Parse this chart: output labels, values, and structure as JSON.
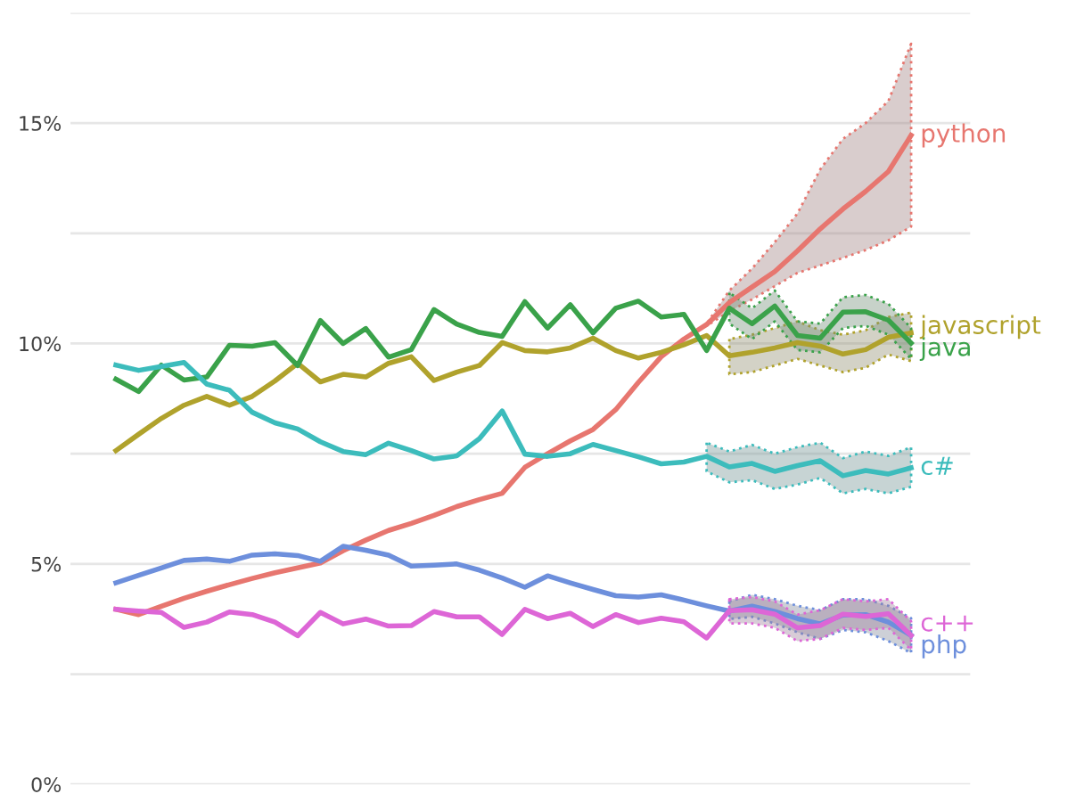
{
  "chart_data": {
    "type": "line",
    "legend": false,
    "grid": "y",
    "tick_labels": "y",
    "categories": [
      null,
      null,
      null,
      null,
      null,
      null,
      null,
      null,
      null,
      null,
      null,
      null,
      null,
      null,
      null,
      null,
      null,
      null,
      null,
      null,
      null,
      null,
      null,
      null,
      null,
      null,
      null,
      null,
      null,
      null,
      null,
      null,
      null,
      null,
      null,
      null
    ],
    "ylim": [
      0,
      17.5
    ],
    "yticks": [
      {
        "value": 0,
        "label": "0%"
      },
      {
        "value": 2.5,
        "label": null
      },
      {
        "value": 5,
        "label": "5%"
      },
      {
        "value": 7.5,
        "label": null
      },
      {
        "value": 10,
        "label": "10%"
      },
      {
        "value": 12.5,
        "label": null
      },
      {
        "value": 15,
        "label": "15%"
      },
      {
        "value": 17.5,
        "label": null
      }
    ],
    "series": [
      {
        "name": "python",
        "color": "#e7766f",
        "values": [
          3.97,
          3.85,
          4.04,
          4.22,
          4.38,
          4.53,
          4.67,
          4.8,
          4.91,
          5.02,
          5.3,
          5.54,
          5.76,
          5.92,
          6.1,
          6.3,
          6.46,
          6.6,
          7.19,
          7.5,
          7.79,
          8.05,
          8.5,
          9.12,
          9.7,
          10.1,
          10.43,
          10.93,
          11.28,
          11.63,
          12.1,
          12.6,
          13.05,
          13.45,
          13.9,
          14.72
        ],
        "lower": [
          null,
          null,
          null,
          null,
          null,
          null,
          null,
          null,
          null,
          null,
          null,
          null,
          null,
          null,
          null,
          null,
          null,
          null,
          null,
          null,
          null,
          null,
          null,
          null,
          null,
          null,
          10.4,
          10.73,
          11.0,
          11.3,
          11.6,
          11.77,
          11.94,
          12.12,
          12.34,
          12.65
        ],
        "upper": [
          null,
          null,
          null,
          null,
          null,
          null,
          null,
          null,
          null,
          null,
          null,
          null,
          null,
          null,
          null,
          null,
          null,
          null,
          null,
          null,
          null,
          null,
          null,
          null,
          null,
          null,
          10.45,
          11.2,
          11.7,
          12.3,
          12.95,
          13.95,
          14.64,
          15.0,
          15.5,
          16.8
        ]
      },
      {
        "name": "javascript",
        "color": "#b0a22c",
        "values": [
          7.57,
          7.94,
          8.3,
          8.6,
          8.8,
          8.6,
          8.8,
          9.15,
          9.55,
          9.13,
          9.3,
          9.24,
          9.55,
          9.7,
          9.16,
          9.35,
          9.5,
          10.02,
          9.84,
          9.81,
          9.9,
          10.12,
          9.84,
          9.67,
          9.8,
          9.97,
          10.18,
          9.72,
          9.8,
          9.9,
          10.02,
          9.94,
          9.76,
          9.86,
          10.14,
          10.24
        ],
        "lower": [
          null,
          null,
          null,
          null,
          null,
          null,
          null,
          null,
          null,
          null,
          null,
          null,
          null,
          null,
          null,
          null,
          null,
          null,
          null,
          null,
          null,
          null,
          null,
          null,
          null,
          null,
          null,
          9.3,
          9.35,
          9.5,
          9.65,
          9.5,
          9.35,
          9.45,
          9.75,
          9.6
        ],
        "upper": [
          null,
          null,
          null,
          null,
          null,
          null,
          null,
          null,
          null,
          null,
          null,
          null,
          null,
          null,
          null,
          null,
          null,
          null,
          null,
          null,
          null,
          null,
          null,
          null,
          null,
          null,
          null,
          10.1,
          10.2,
          10.35,
          10.5,
          10.3,
          10.2,
          10.3,
          10.6,
          10.7
        ]
      },
      {
        "name": "java",
        "color": "#3aa24a",
        "values": [
          9.19,
          8.91,
          9.51,
          9.17,
          9.24,
          9.96,
          9.94,
          10.02,
          9.5,
          10.52,
          10.0,
          10.34,
          9.69,
          9.86,
          10.77,
          10.44,
          10.25,
          10.16,
          10.95,
          10.35,
          10.88,
          10.24,
          10.8,
          10.96,
          10.6,
          10.66,
          9.84,
          10.8,
          10.45,
          10.85,
          10.18,
          10.12,
          10.71,
          10.72,
          10.53,
          10.01
        ],
        "lower": [
          null,
          null,
          null,
          null,
          null,
          null,
          null,
          null,
          null,
          null,
          null,
          null,
          null,
          null,
          null,
          null,
          null,
          null,
          null,
          null,
          null,
          null,
          null,
          null,
          null,
          null,
          null,
          10.45,
          10.1,
          10.5,
          9.85,
          9.8,
          10.35,
          10.4,
          10.2,
          9.65
        ],
        "upper": [
          null,
          null,
          null,
          null,
          null,
          null,
          null,
          null,
          null,
          null,
          null,
          null,
          null,
          null,
          null,
          null,
          null,
          null,
          null,
          null,
          null,
          null,
          null,
          null,
          null,
          null,
          null,
          11.15,
          10.8,
          11.2,
          10.5,
          10.45,
          11.05,
          11.1,
          10.9,
          10.35
        ]
      },
      {
        "name": "c#",
        "color": "#3cbcbc",
        "values": [
          9.51,
          9.39,
          9.48,
          9.57,
          9.08,
          8.94,
          8.44,
          8.2,
          8.06,
          7.77,
          7.55,
          7.48,
          7.74,
          7.57,
          7.38,
          7.45,
          7.84,
          8.47,
          7.49,
          7.44,
          7.5,
          7.71,
          7.57,
          7.43,
          7.27,
          7.31,
          7.44,
          7.2,
          7.28,
          7.1,
          7.23,
          7.34,
          7.0,
          7.12,
          7.04,
          7.18
        ],
        "lower": [
          null,
          null,
          null,
          null,
          null,
          null,
          null,
          null,
          null,
          null,
          null,
          null,
          null,
          null,
          null,
          null,
          null,
          null,
          null,
          null,
          null,
          null,
          null,
          null,
          null,
          null,
          7.1,
          6.85,
          6.9,
          6.7,
          6.8,
          6.95,
          6.6,
          6.7,
          6.6,
          6.75
        ],
        "upper": [
          null,
          null,
          null,
          null,
          null,
          null,
          null,
          null,
          null,
          null,
          null,
          null,
          null,
          null,
          null,
          null,
          null,
          null,
          null,
          null,
          null,
          null,
          null,
          null,
          null,
          null,
          7.75,
          7.55,
          7.7,
          7.5,
          7.65,
          7.75,
          7.4,
          7.55,
          7.45,
          7.65
        ]
      },
      {
        "name": "php",
        "color": "#6d8fdc",
        "values": [
          4.57,
          4.74,
          4.91,
          5.08,
          5.11,
          5.06,
          5.2,
          5.23,
          5.19,
          5.06,
          5.4,
          5.31,
          5.2,
          4.95,
          4.97,
          5.0,
          4.86,
          4.68,
          4.47,
          4.73,
          4.57,
          4.42,
          4.28,
          4.25,
          4.3,
          4.18,
          4.05,
          3.93,
          4.04,
          3.92,
          3.76,
          3.64,
          3.84,
          3.85,
          3.68,
          3.38
        ],
        "lower": [
          null,
          null,
          null,
          null,
          null,
          null,
          null,
          null,
          null,
          null,
          null,
          null,
          null,
          null,
          null,
          null,
          null,
          null,
          null,
          null,
          null,
          null,
          null,
          null,
          null,
          null,
          null,
          3.75,
          3.8,
          3.65,
          3.45,
          3.3,
          3.5,
          3.45,
          3.25,
          2.98
        ],
        "upper": [
          null,
          null,
          null,
          null,
          null,
          null,
          null,
          null,
          null,
          null,
          null,
          null,
          null,
          null,
          null,
          null,
          null,
          null,
          null,
          null,
          null,
          null,
          null,
          null,
          null,
          null,
          null,
          4.15,
          4.3,
          4.2,
          4.05,
          3.95,
          4.2,
          4.2,
          4.05,
          3.77
        ]
      },
      {
        "name": "c++",
        "color": "#dd66d6",
        "values": [
          3.97,
          3.93,
          3.9,
          3.56,
          3.68,
          3.91,
          3.85,
          3.68,
          3.37,
          3.9,
          3.64,
          3.75,
          3.59,
          3.6,
          3.92,
          3.8,
          3.8,
          3.4,
          3.97,
          3.76,
          3.88,
          3.58,
          3.85,
          3.67,
          3.77,
          3.69,
          3.32,
          3.94,
          3.96,
          3.86,
          3.55,
          3.6,
          3.86,
          3.81,
          3.87,
          3.38
        ],
        "lower": [
          null,
          null,
          null,
          null,
          null,
          null,
          null,
          null,
          null,
          null,
          null,
          null,
          null,
          null,
          null,
          null,
          null,
          null,
          null,
          null,
          null,
          null,
          null,
          null,
          null,
          null,
          null,
          3.65,
          3.65,
          3.55,
          3.25,
          3.3,
          3.55,
          3.5,
          3.55,
          3.05
        ],
        "upper": [
          null,
          null,
          null,
          null,
          null,
          null,
          null,
          null,
          null,
          null,
          null,
          null,
          null,
          null,
          null,
          null,
          null,
          null,
          null,
          null,
          null,
          null,
          null,
          null,
          null,
          null,
          null,
          4.2,
          4.25,
          4.15,
          3.85,
          3.95,
          4.2,
          4.15,
          4.2,
          3.7
        ]
      }
    ]
  }
}
